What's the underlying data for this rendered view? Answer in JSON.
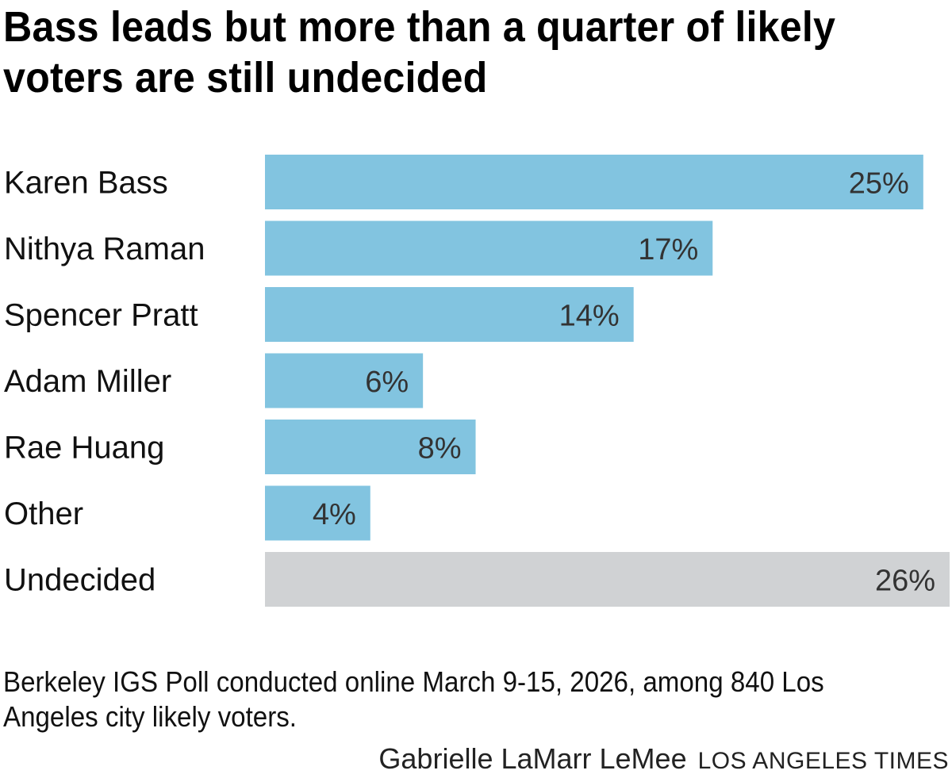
{
  "chart_data": {
    "type": "bar",
    "orientation": "horizontal",
    "title": "Bass leads but more than a quarter of likely voters are still undecided",
    "categories": [
      "Karen Bass",
      "Nithya Raman",
      "Spencer Pratt",
      "Adam Miller",
      "Rae Huang",
      "Other",
      "Undecided"
    ],
    "values": [
      25,
      17,
      14,
      6,
      8,
      4,
      26
    ],
    "value_labels": [
      "25%",
      "17%",
      "14%",
      "6%",
      "8%",
      "4%",
      "26%"
    ],
    "colors": [
      "#82c4e0",
      "#82c4e0",
      "#82c4e0",
      "#82c4e0",
      "#82c4e0",
      "#82c4e0",
      "#d0d2d4"
    ],
    "xlabel": "",
    "ylabel": "",
    "xlim": [
      0,
      26
    ],
    "grid": false,
    "legend": "none"
  },
  "footer": {
    "note": "Berkeley IGS Poll conducted online March 9-15, 2026, among 840 Los Angeles city likely voters.",
    "byline": "Gabrielle LaMarr LeMee",
    "brand": "LOS ANGELES TIMES"
  }
}
